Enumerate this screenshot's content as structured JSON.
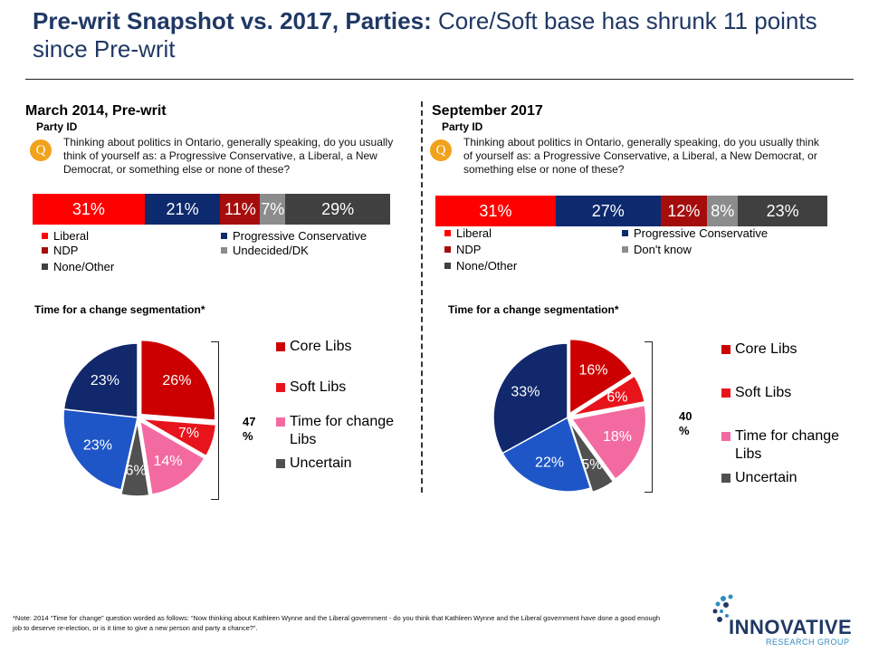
{
  "title": {
    "bold": "Pre-writ Snapshot vs. 2017, Parties:",
    "rest": " Core/Soft base has shrunk 11 points since Pre-writ"
  },
  "left": {
    "heading": "March 2014, Pre-writ",
    "party_id": "Party ID",
    "q_badge": "Q",
    "question": "Thinking about politics in Ontario, generally speaking, do you usually think of yourself as: a Progressive Conservative, a Liberal, a New Democrat, or something else or none of these?",
    "segmentation_title": "Time for a change segmentation*",
    "bracket_total": "47 %"
  },
  "right": {
    "heading": "September 2017",
    "party_id": "Party ID",
    "q_badge": "Q",
    "question": "Thinking about politics in Ontario, generally speaking, do you usually think of yourself as: a Progressive Conservative, a Liberal, a New Democrat, or something else or none of these?",
    "segmentation_title": "Time for a change segmentation*",
    "bracket_total": "40 %"
  },
  "colors": {
    "liberal": "#ff0000",
    "pc": "#0d2a6e",
    "ndp": "#a50d0d",
    "undecided": "#8c8c8c",
    "none": "#404040",
    "core_libs": "#cc0000",
    "soft_libs": "#e8141c",
    "time_for_change": "#f36aa0",
    "uncertain": "#505050",
    "pie_pc": "#12286c",
    "pie_prog": "#1e56c7"
  },
  "chart_data": [
    {
      "type": "bar",
      "orientation": "horizontal-stacked",
      "title": "March 2014, Pre-writ",
      "categories": [
        "Liberal",
        "Progressive Conservative",
        "NDP",
        "Undecided/DK",
        "None/Other"
      ],
      "values": [
        31,
        21,
        11,
        7,
        29
      ],
      "labels": [
        "31%",
        "21%",
        "11%",
        "7%",
        "29%"
      ]
    },
    {
      "type": "bar",
      "orientation": "horizontal-stacked",
      "title": "September 2017",
      "categories": [
        "Liberal",
        "Progressive Conservative",
        "NDP",
        "Don't know",
        "None/Other"
      ],
      "values": [
        31,
        27,
        12,
        8,
        23
      ],
      "labels": [
        "31%",
        "27%",
        "12%",
        "8%",
        "23%"
      ]
    },
    {
      "type": "pie",
      "title": "Time for a change segmentation*",
      "legend": [
        "Core Libs",
        "Soft Libs",
        "Time for change Libs",
        "Uncertain"
      ],
      "slices": [
        {
          "key": "core_libs",
          "value": 26,
          "label": "26%"
        },
        {
          "key": "soft_libs",
          "value": 7,
          "label": "7%"
        },
        {
          "key": "time_for_change",
          "value": 14,
          "label": "14%"
        },
        {
          "key": "uncertain",
          "value": 6,
          "label": "6%"
        },
        {
          "key": "pie_prog",
          "value": 23,
          "label": "23%"
        },
        {
          "key": "pie_pc",
          "value": 23,
          "label": "23%"
        }
      ]
    },
    {
      "type": "pie",
      "title": "Time for a change segmentation*",
      "legend": [
        "Core Libs",
        "Soft Libs",
        "Time for change Libs",
        "Uncertain"
      ],
      "slices": [
        {
          "key": "core_libs",
          "value": 16,
          "label": "16%"
        },
        {
          "key": "soft_libs",
          "value": 6,
          "label": "6%"
        },
        {
          "key": "time_for_change",
          "value": 18,
          "label": "18%"
        },
        {
          "key": "uncertain",
          "value": 5,
          "label": "5%"
        },
        {
          "key": "pie_prog",
          "value": 22,
          "label": "22%"
        },
        {
          "key": "pie_pc",
          "value": 33,
          "label": "33%"
        }
      ]
    }
  ],
  "footnote": "*Note: 2014 “Time for change” question worded as follows: “Now thinking about Kathleen Wynne and the Liberal government - do you think that Kathleen Wynne and the Liberal government have done a good enough job to deserve re-election, or is it time to give a new person and party a chance?”.",
  "logo": {
    "name": "INNOVATIVE",
    "sub": "RESEARCH GROUP"
  }
}
